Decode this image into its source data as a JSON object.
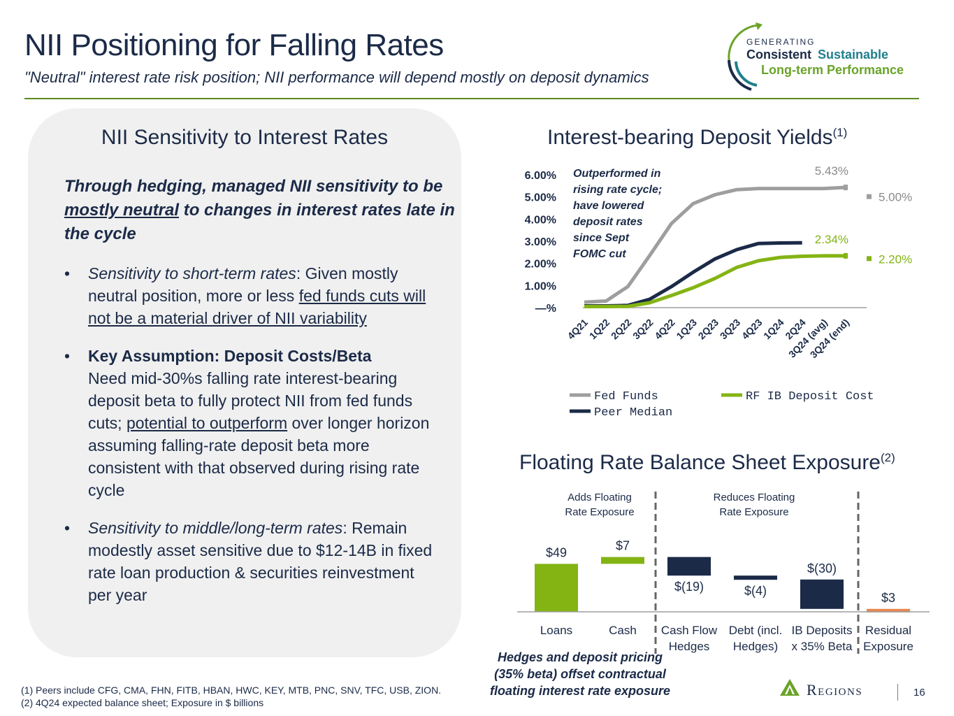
{
  "header": {
    "title": "NII Positioning for Falling Rates",
    "subtitle": "\"Neutral\" interest rate risk position; NII performance will depend mostly on deposit dynamics"
  },
  "brand_badge": {
    "line1": "GENERATING",
    "line2a": "Consistent",
    "line2b": "Sustainable",
    "line3": "Long-term Performance",
    "colors": {
      "navy": "#1b2a47",
      "teal": "#1f7f8c",
      "green": "#6aa329"
    }
  },
  "left": {
    "heading": "NII Sensitivity to Interest Rates",
    "lead_1": "Through hedging, managed NII sensitivity to be ",
    "lead_2": "mostly neutral",
    "lead_3": " to changes in interest rates late in the cycle",
    "bullet_char": "•",
    "bullet1_a": "Sensitivity to short-term rates",
    "bullet1_b": ": Given mostly neutral position, more or less ",
    "bullet1_c": "fed funds cuts will not be a material driver of NII variability",
    "bullet2_a": "Key Assumption: Deposit Costs/Beta",
    "bullet2_b": "Need mid-30%s falling rate interest-bearing deposit beta to fully protect NII from fed funds cuts; ",
    "bullet2_c": "potential to outperform",
    "bullet2_d": " over longer horizon assuming falling-rate deposit beta more consistent with that observed during rising rate cycle",
    "bullet3_a": "Sensitivity to middle/long-term rates",
    "bullet3_b": ": Remain modestly asset sensitive due to $12-14B in fixed rate loan production & securities reinvestment per year"
  },
  "deposit_chart": {
    "title": "Interest-bearing Deposit Yields",
    "title_sup": "(1)",
    "annotation": [
      "Outperformed in",
      "rising rate cycle;",
      "have lowered",
      "deposit rates",
      "since Sept",
      "FOMC cut"
    ],
    "end_labels": {
      "fed_end": "5.43%",
      "fed_forward": "5.00%",
      "rf_end": "2.34%",
      "rf_forward": "2.20%"
    }
  },
  "exposure_chart": {
    "title": "Floating Rate Balance Sheet Exposure",
    "title_sup": "(2)",
    "group_adds": [
      "Adds Floating",
      "Rate Exposure"
    ],
    "group_reduces": [
      "Reduces Floating",
      "Rate Exposure"
    ]
  },
  "chart_data": [
    {
      "type": "line",
      "title": "Interest-bearing Deposit Yields",
      "x": [
        "4Q21",
        "1Q22",
        "2Q22",
        "3Q22",
        "4Q22",
        "1Q23",
        "2Q23",
        "3Q23",
        "4Q23",
        "1Q24",
        "2Q24",
        "3Q24 (avg)",
        "3Q24 (end)"
      ],
      "y_ticks": [
        "—%",
        "1.00%",
        "2.00%",
        "3.00%",
        "4.00%",
        "5.00%",
        "6.00%"
      ],
      "ylim": [
        0,
        6
      ],
      "series": [
        {
          "name": "Fed Funds",
          "color": "#9e9e9e",
          "values": [
            0.25,
            0.3,
            0.95,
            2.35,
            3.8,
            4.7,
            5.1,
            5.33,
            5.38,
            5.38,
            5.38,
            5.38,
            5.43
          ]
        },
        {
          "name": "Peer Median",
          "color": "#1b2a47",
          "values": [
            0.08,
            0.08,
            0.1,
            0.38,
            0.95,
            1.6,
            2.2,
            2.62,
            2.9,
            2.92,
            2.93,
            null,
            null
          ]
        },
        {
          "name": "RF IB Deposit Cost",
          "color": "#84b414",
          "values": [
            0.05,
            0.05,
            0.06,
            0.22,
            0.55,
            0.9,
            1.32,
            1.82,
            2.12,
            2.27,
            2.32,
            2.34,
            2.34
          ]
        }
      ],
      "legend": "bottom"
    },
    {
      "type": "bar",
      "title": "Floating Rate Balance Sheet Exposure",
      "categories": [
        [
          "Loans"
        ],
        [
          "Cash"
        ],
        [
          "Cash Flow",
          "Hedges"
        ],
        [
          "Debt (incl.",
          "Hedges)"
        ],
        [
          "IB Deposits",
          "x 35% Beta"
        ],
        [
          "Residual",
          "Exposure"
        ]
      ],
      "values": [
        49,
        7,
        -19,
        -4,
        -30,
        3
      ],
      "labels": [
        "$49",
        "$7",
        "$(19)",
        "$(4)",
        "$(30)",
        "$3"
      ],
      "colors": [
        "#84b414",
        "#84b414",
        "#1b2a47",
        "#1b2a47",
        "#1b2a47",
        "#e8864f"
      ],
      "waterfall": true
    }
  ],
  "hedges_note": [
    "Hedges and deposit pricing",
    "(35% beta) offset contractual",
    "floating interest rate exposure"
  ],
  "footnotes": [
    "(1) Peers include CFG, CMA, FHN, FITB, HBAN, HWC, KEY, MTB, PNC, SNV, TFC, USB, ZION.",
    "(2) 4Q24 expected balance sheet; Exposure in $ billions"
  ],
  "logo_text": "Regions",
  "page_number": "16"
}
